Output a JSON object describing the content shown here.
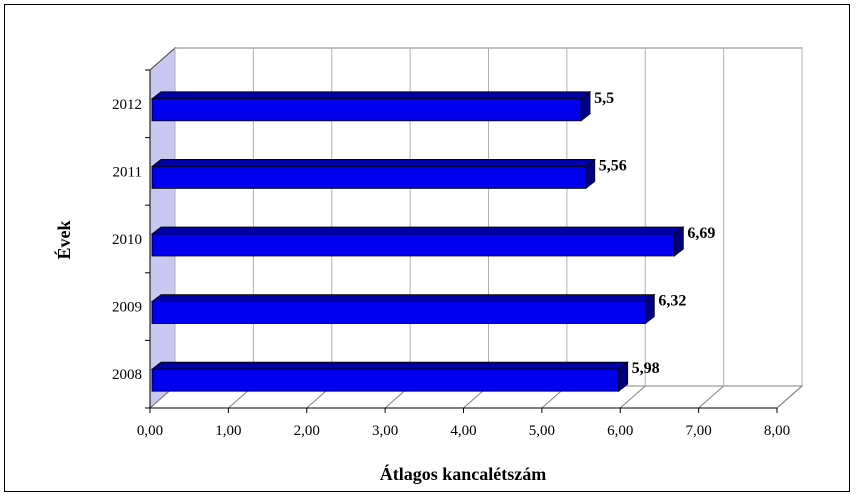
{
  "chart_data": {
    "type": "bar",
    "orientation": "horizontal",
    "style": "3d",
    "categories": [
      "2008",
      "2009",
      "2010",
      "2011",
      "2012"
    ],
    "values": [
      5.98,
      6.32,
      6.69,
      5.56,
      5.5
    ],
    "data_labels": [
      "5,98",
      "6,32",
      "6,69",
      "5,56",
      "5,5"
    ],
    "xlabel": "Átlagos kancalétszám",
    "ylabel": "Évek",
    "xlim": [
      0,
      8
    ],
    "x_ticks": [
      "0,00",
      "1,00",
      "2,00",
      "3,00",
      "4,00",
      "5,00",
      "6,00",
      "7,00",
      "8,00"
    ],
    "grid": "vertical",
    "legend": "none",
    "bar_color": "#0000EE"
  }
}
